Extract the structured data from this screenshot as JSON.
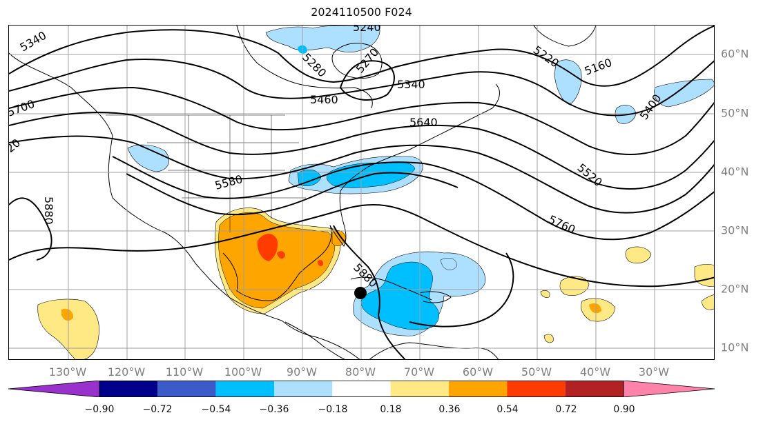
{
  "title": "2024110500 F024",
  "lat_labels": [
    "60°N",
    "50°N",
    "40°N",
    "30°N",
    "20°N",
    "10°N"
  ],
  "lon_labels": [
    "130°W",
    "120°W",
    "110°W",
    "100°W",
    "90°W",
    "80°W",
    "70°W",
    "60°W",
    "50°W",
    "40°W",
    "30°W"
  ],
  "contour_labels": [
    "5340",
    "5280",
    "5270",
    "5460",
    "5640",
    "5580",
    "5880",
    "5760",
    "5520",
    "5400",
    "5220",
    "5160",
    "5700",
    "5240",
    "5880",
    "20",
    "5340"
  ],
  "colorbar": {
    "ticks": [
      "−0.90",
      "−0.72",
      "−0.54",
      "−0.36",
      "−0.18",
      "0.18",
      "0.36",
      "0.54",
      "0.72",
      "0.90"
    ],
    "colors": [
      "#9932CC",
      "#00008B",
      "#3A5BC8",
      "#00BFFF",
      "#ADDFFF",
      "#FFFFFF",
      "#FFE985",
      "#FFA500",
      "#FF3C00",
      "#B22222",
      "#FF82AB"
    ]
  },
  "colors": {
    "contour": "#000000",
    "grid": "#a0a0a0",
    "coast": "#000000"
  },
  "marker": "storm-center-dot"
}
